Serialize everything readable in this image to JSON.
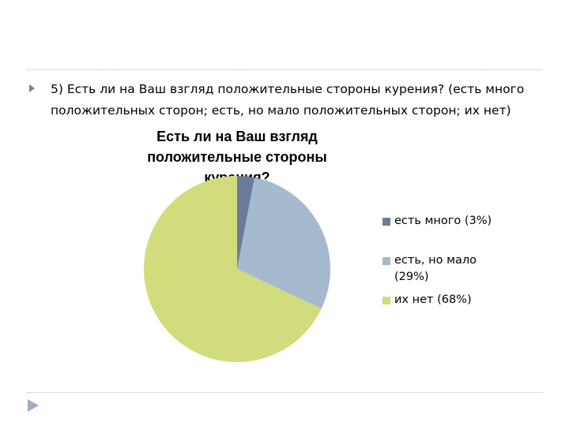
{
  "slide": {
    "question": "5) Есть ли на Ваш взгляд положительные стороны курения? (есть много положительных сторон; есть, но мало положительных сторон; их нет)",
    "bullet_icon": "triangle-bullet-icon",
    "nav_icon": "next-slide-icon",
    "divider_color": "#b8b8b8",
    "bullet_color": "#7f7f7f",
    "nav_color": "#a0acc8"
  },
  "chart_data": {
    "type": "pie",
    "title": "Есть ли на Ваш взгляд положительные стороны курения?",
    "legend_position": "right",
    "start_angle": "top, clockwise",
    "slices": [
      {
        "label": "есть много (3%)",
        "value": 3,
        "color": "#6c7b99"
      },
      {
        "label": "есть, но мало (29%)",
        "value": 29,
        "color": "#a5b9cf"
      },
      {
        "label": "их нет (68%)",
        "value": 68,
        "color": "#d3dc7d"
      }
    ]
  }
}
